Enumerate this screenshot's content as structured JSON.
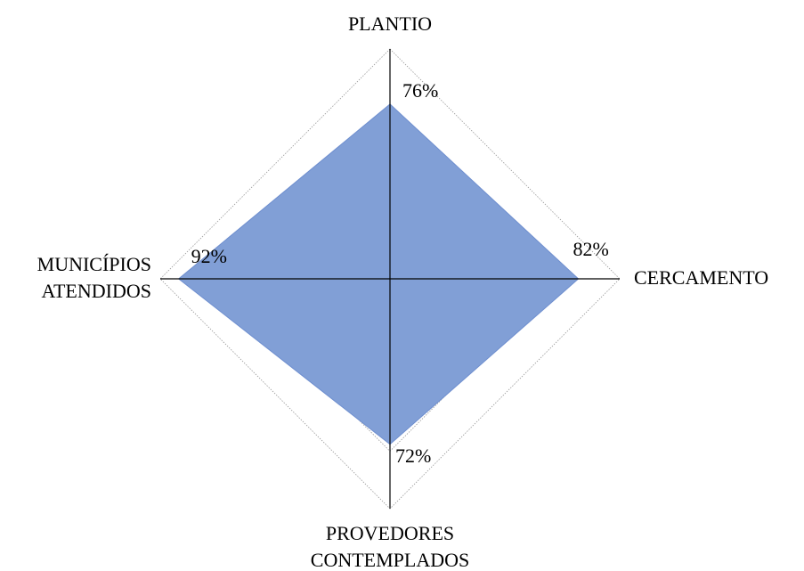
{
  "chart_data": {
    "type": "radar",
    "categories": [
      "PLANTIO",
      "CERCAMENTO",
      "PROVEDORES\nCONTEMPLADOS",
      "MUNICÍPIOS\nATENDIDOS"
    ],
    "values": [
      76,
      82,
      72,
      92
    ],
    "value_labels": [
      "76%",
      "82%",
      "72%",
      "92%"
    ],
    "color": "#819fd6",
    "ylim": [
      0,
      100
    ],
    "yticks": [
      0,
      25,
      50,
      75,
      100
    ],
    "grid": true
  }
}
